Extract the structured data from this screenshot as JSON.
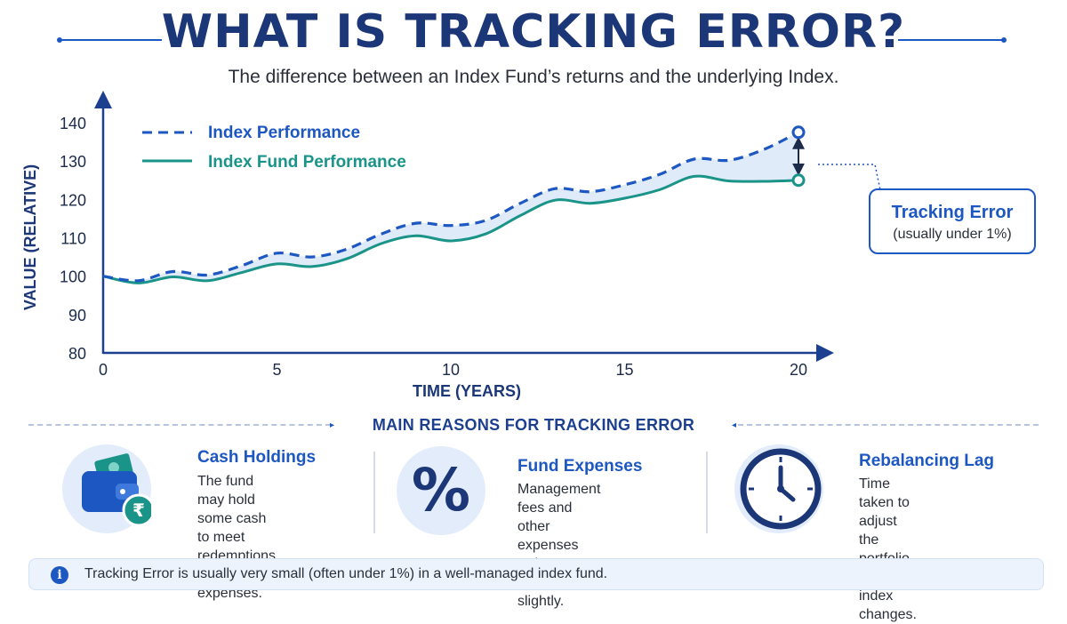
{
  "header": {
    "title": "WHAT IS TRACKING ERROR?",
    "subtitle": "The difference between an Index Fund’s returns and the underlying Index."
  },
  "chart_data": {
    "type": "line",
    "xlabel": "TIME (YEARS)",
    "ylabel": "VALUE (RELATIVE)",
    "xlim": [
      0,
      20
    ],
    "ylim": [
      80,
      140
    ],
    "xticks": [
      0,
      5,
      10,
      15,
      20
    ],
    "yticks": [
      140,
      130,
      120,
      110,
      100,
      90,
      80
    ],
    "legend_position": "top-left",
    "grid": false,
    "series": [
      {
        "name": "Index Performance",
        "style": "dashed",
        "color": "#1d57c2",
        "x": [
          0,
          1,
          2,
          3,
          4,
          5,
          6,
          7,
          8,
          9,
          10,
          11,
          12,
          13,
          14,
          15,
          16,
          17,
          18,
          19,
          20
        ],
        "y": [
          100,
          98.8,
          101.2,
          100.3,
          102.8,
          106.0,
          105.0,
          107.0,
          111.0,
          113.8,
          113.2,
          114.5,
          119.0,
          122.8,
          122.0,
          123.8,
          126.5,
          130.5,
          130.2,
          133.0,
          137.5
        ]
      },
      {
        "name": "Index Fund Performance",
        "style": "solid",
        "color": "#1a9488",
        "x": [
          0,
          1,
          2,
          3,
          4,
          5,
          6,
          7,
          8,
          9,
          10,
          11,
          12,
          13,
          14,
          15,
          16,
          17,
          18,
          19,
          20
        ],
        "y": [
          100,
          98.2,
          99.8,
          98.8,
          101.0,
          103.2,
          102.5,
          104.5,
          108.5,
          110.5,
          109.2,
          111.0,
          115.8,
          119.8,
          119.0,
          120.3,
          122.5,
          126.0,
          124.8,
          124.7,
          125.0
        ]
      }
    ],
    "annotation": {
      "title": "Tracking Error",
      "subtitle": "(usually under 1%)"
    }
  },
  "reasons": {
    "heading": "MAIN REASONS FOR TRACKING ERROR",
    "items": [
      {
        "icon": "wallet-rupee-icon",
        "title": "Cash Holdings",
        "lines": [
          "The fund may hold",
          "some cash to meet",
          "redemptions and",
          "expenses."
        ]
      },
      {
        "icon": "percent-icon",
        "title": "Fund Expenses",
        "lines": [
          "Management fees and",
          "other expenses reduce",
          "returns slightly."
        ]
      },
      {
        "icon": "clock-icon",
        "title": "Rebalancing Lag",
        "lines": [
          "Time taken to adjust",
          "the portfolio to match",
          "index changes."
        ]
      }
    ],
    "currency_symbol": "₹",
    "percent_symbol": "%"
  },
  "note": {
    "icon": "info-icon",
    "glyph": "i",
    "text": "Tracking Error is usually very small (often under 1%) in a well-managed index fund."
  },
  "colors": {
    "title": "#1b3778",
    "accent": "#1d57c2",
    "fund_line": "#1a9488",
    "gap_fill": "#dbe8f8",
    "icon_bg": "#e3ecfa"
  }
}
